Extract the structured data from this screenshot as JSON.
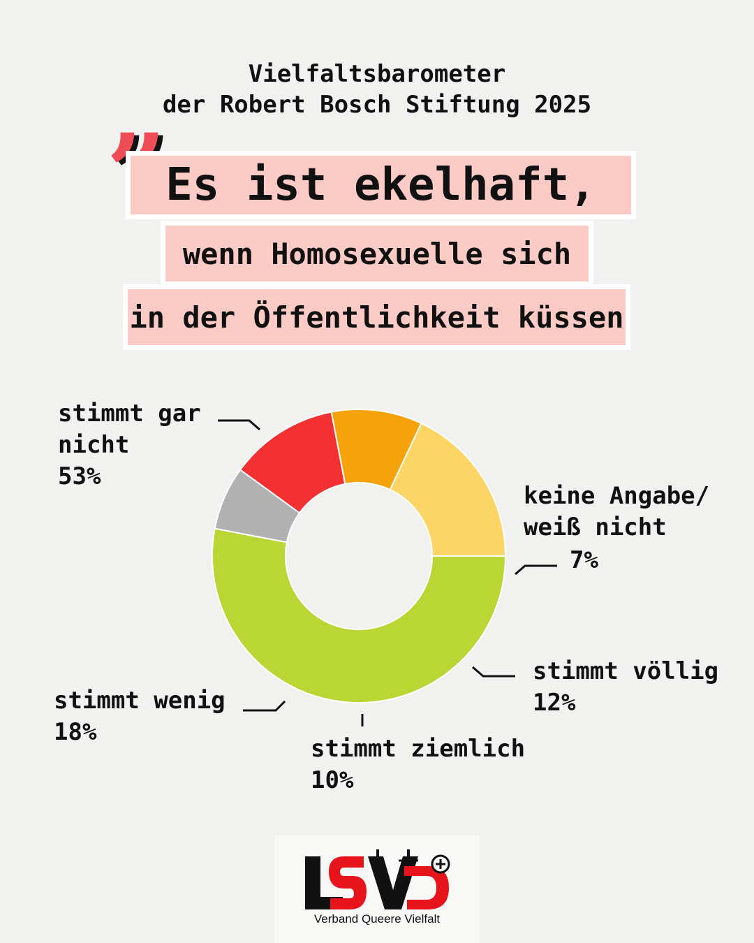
{
  "header": {
    "line1": "Vielfaltsbarometer",
    "line2": "der Robert Bosch Stiftung 2025"
  },
  "quote": {
    "mark": "”",
    "line1": "Es ist ekelhaft,",
    "line2": "wenn Homosexuelle sich",
    "line3": "in der Öffentlichkeit küssen"
  },
  "chart_data": {
    "type": "pie",
    "donut": true,
    "categories": [
      "stimmt gar nicht",
      "keine Angabe/ weiß nicht",
      "stimmt völlig",
      "stimmt ziemlich",
      "stimmt wenig"
    ],
    "values": [
      53,
      7,
      12,
      10,
      18
    ],
    "value_labels": [
      "53%",
      "7%",
      "12%",
      "10%",
      "18%"
    ],
    "colors": [
      "#b9d634",
      "#b1b1b1",
      "#f33032",
      "#f6a20b",
      "#fdd566"
    ],
    "labels": [
      {
        "lines": [
          "stimmt gar",
          "nicht"
        ],
        "pct": "53%"
      },
      {
        "lines": [
          "keine Angabe/",
          "weiß nicht"
        ],
        "pct": "7%"
      },
      {
        "lines": [
          "stimmt völlig"
        ],
        "pct": "12%"
      },
      {
        "lines": [
          "stimmt ziemlich"
        ],
        "pct": "10%"
      },
      {
        "lines": [
          "stimmt wenig"
        ],
        "pct": "18%"
      }
    ]
  },
  "logo": {
    "tagline": "Verband Queere Vielfalt",
    "colors": {
      "black": "#111111",
      "red": "#e8141c"
    }
  },
  "colors": {
    "background": "#f1f1f0",
    "highlight": "#fccbc6",
    "accent_quote": "#ef4d56"
  }
}
